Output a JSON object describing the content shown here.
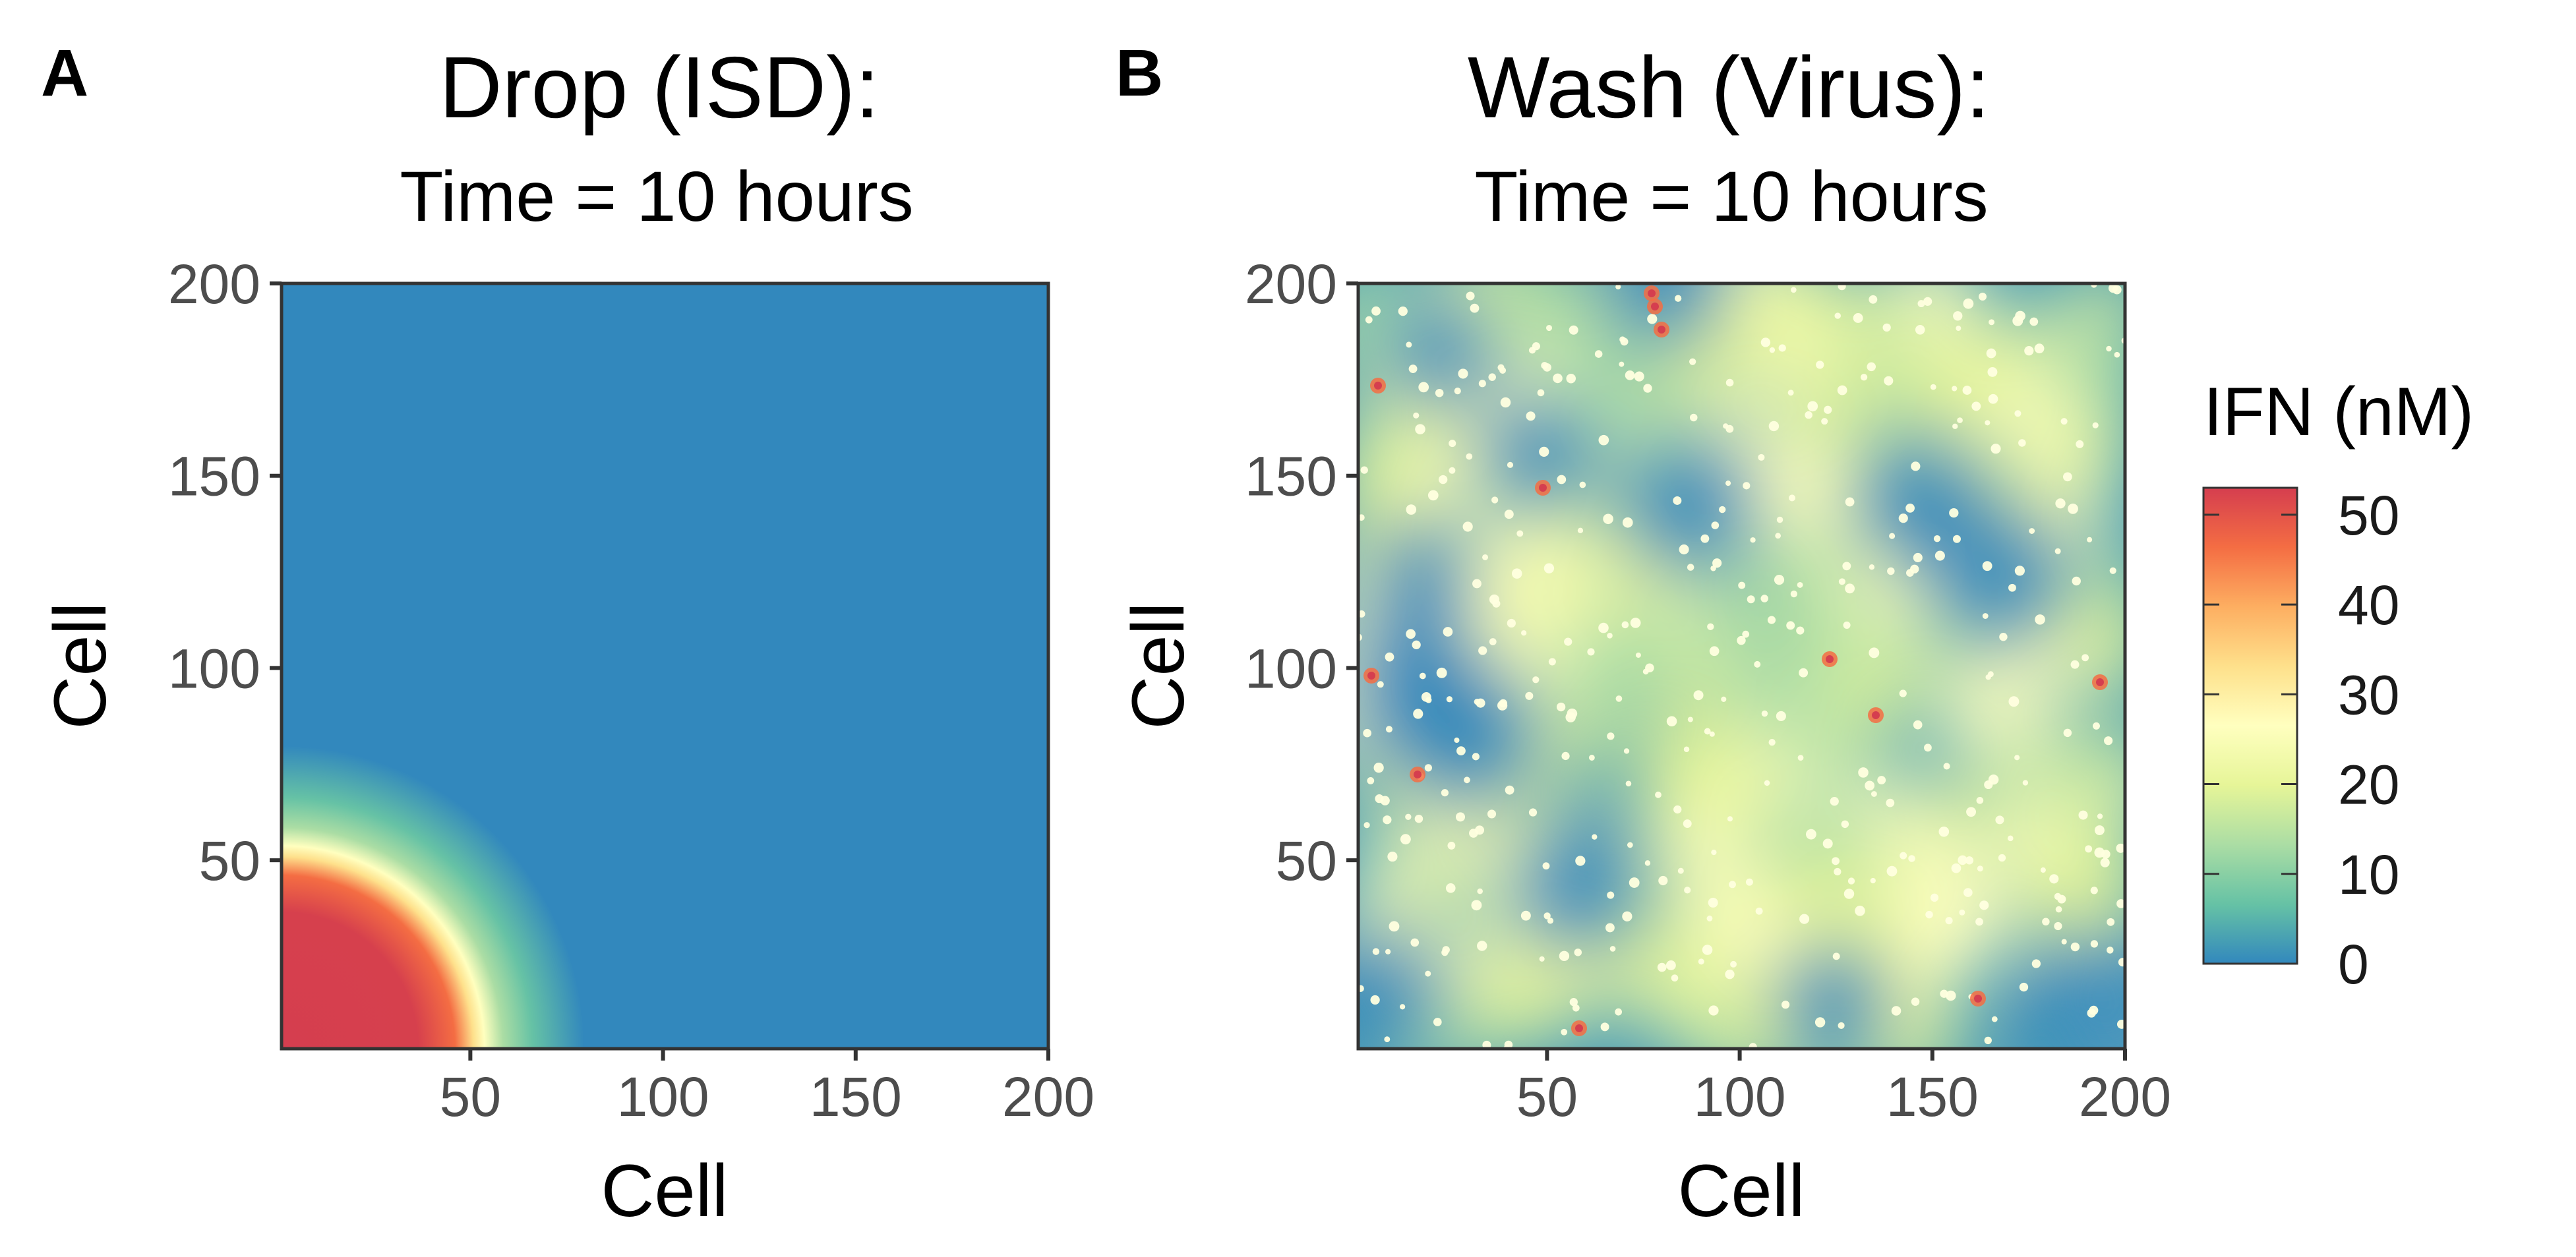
{
  "chart_data": [
    {
      "type": "heatmap",
      "panel": "A",
      "title": "Drop (ISD):",
      "subtitle": "Time = 10 hours",
      "xlabel": "Cell",
      "ylabel": "Cell",
      "xlim": [
        1,
        200
      ],
      "ylim": [
        1,
        200
      ],
      "xticks": [
        50,
        100,
        150,
        200
      ],
      "yticks": [
        50,
        100,
        150,
        200
      ],
      "pattern": "quarter-disk of high IFN centred at origin, radius ~60 cells, background ~0"
    },
    {
      "type": "heatmap",
      "panel": "B",
      "title": "Wash (Virus):",
      "subtitle": "Time = 10 hours",
      "xlabel": "Cell",
      "ylabel": "Cell",
      "xlim": [
        1,
        200
      ],
      "ylim": [
        1,
        200
      ],
      "xticks": [
        50,
        100,
        150,
        200
      ],
      "yticks": [
        50,
        100,
        150,
        200
      ],
      "pattern": "scattered spots of IFN across the grid, values mostly 0-25 with rare peaks ~50"
    }
  ],
  "legend": {
    "title": "IFN (nM)",
    "range": [
      0,
      53
    ],
    "ticks": [
      0,
      10,
      20,
      30,
      40,
      50
    ],
    "colors": [
      "#3288bd",
      "#66c2a5",
      "#abdda4",
      "#e6f598",
      "#ffffbf",
      "#fee08b",
      "#fdae61",
      "#f46d43",
      "#d53e4f"
    ]
  }
}
